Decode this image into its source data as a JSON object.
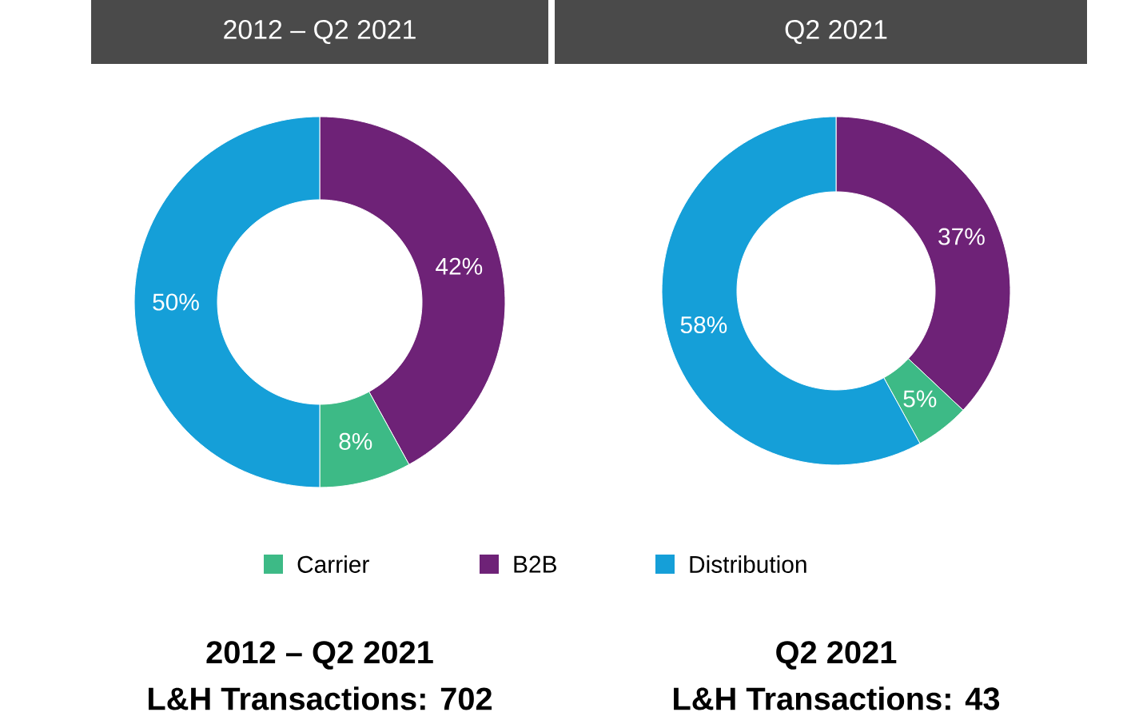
{
  "chart_data": [
    {
      "type": "donut",
      "title": "2012 – Q2 2021",
      "categories": [
        "B2B",
        "Carrier",
        "Distribution"
      ],
      "values": [
        42,
        8,
        50
      ],
      "value_labels": [
        "42%",
        "8%",
        "50%"
      ],
      "colors": [
        "#6e2277",
        "#3dba86",
        "#159fd8"
      ],
      "legend": "bottom",
      "annotations": [
        "2012 – Q2 2021",
        "L&H Transactions: 702"
      ]
    },
    {
      "type": "donut",
      "title": "Q2 2021",
      "categories": [
        null,
        null,
        null
      ],
      "values": [
        37,
        5,
        58
      ],
      "value_labels": [
        "37%",
        "5%",
        "58%"
      ],
      "colors": [
        "#6e2277",
        "#3dba86",
        "#159fd8"
      ],
      "annotations": [
        "Q2 2021",
        "L&H Transactions: 43"
      ]
    }
  ]
}
